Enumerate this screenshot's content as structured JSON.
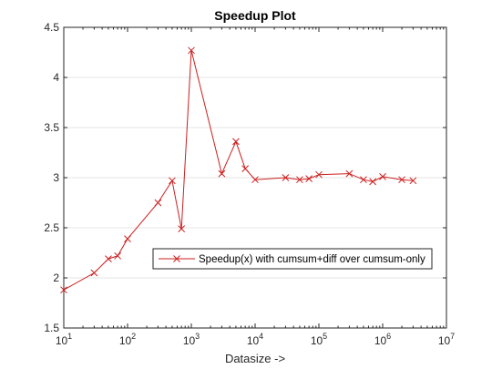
{
  "chart_data": {
    "type": "line",
    "title": "Speedup Plot",
    "xlabel": "Datasize ->",
    "ylabel": "",
    "x_scale": "log",
    "xlim": [
      10,
      10000000
    ],
    "ylim": [
      1.5,
      4.5
    ],
    "x_ticks": [
      {
        "value": 10,
        "base": "10",
        "exp": "1"
      },
      {
        "value": 100,
        "base": "10",
        "exp": "2"
      },
      {
        "value": 1000,
        "base": "10",
        "exp": "3"
      },
      {
        "value": 10000,
        "base": "10",
        "exp": "4"
      },
      {
        "value": 100000,
        "base": "10",
        "exp": "5"
      },
      {
        "value": 1000000,
        "base": "10",
        "exp": "6"
      },
      {
        "value": 10000000,
        "base": "10",
        "exp": "7"
      }
    ],
    "y_ticks": [
      {
        "value": 1.5,
        "label": "1.5"
      },
      {
        "value": 2,
        "label": "2"
      },
      {
        "value": 2.5,
        "label": "2.5"
      },
      {
        "value": 3,
        "label": "3"
      },
      {
        "value": 3.5,
        "label": "3.5"
      },
      {
        "value": 4,
        "label": "4"
      },
      {
        "value": 4.5,
        "label": "4.5"
      }
    ],
    "grid": "horizontal",
    "legend_placement": "middle-right",
    "series": [
      {
        "name": "Speedup(x) with cumsum+diff over cumsum-only",
        "color": "#cc1f1f",
        "marker": "x",
        "x": [
          10,
          30,
          50,
          70,
          100,
          300,
          500,
          700,
          1000,
          3000,
          5000,
          7000,
          10000,
          30000,
          50000,
          70000,
          100000,
          300000,
          500000,
          700000,
          1000000,
          2000000,
          3000000
        ],
        "y": [
          1.88,
          2.05,
          2.19,
          2.22,
          2.39,
          2.75,
          2.97,
          2.49,
          4.27,
          3.04,
          3.36,
          3.09,
          2.98,
          3.0,
          2.98,
          2.99,
          3.03,
          3.04,
          2.98,
          2.96,
          3.01,
          2.98,
          2.97
        ]
      }
    ]
  }
}
